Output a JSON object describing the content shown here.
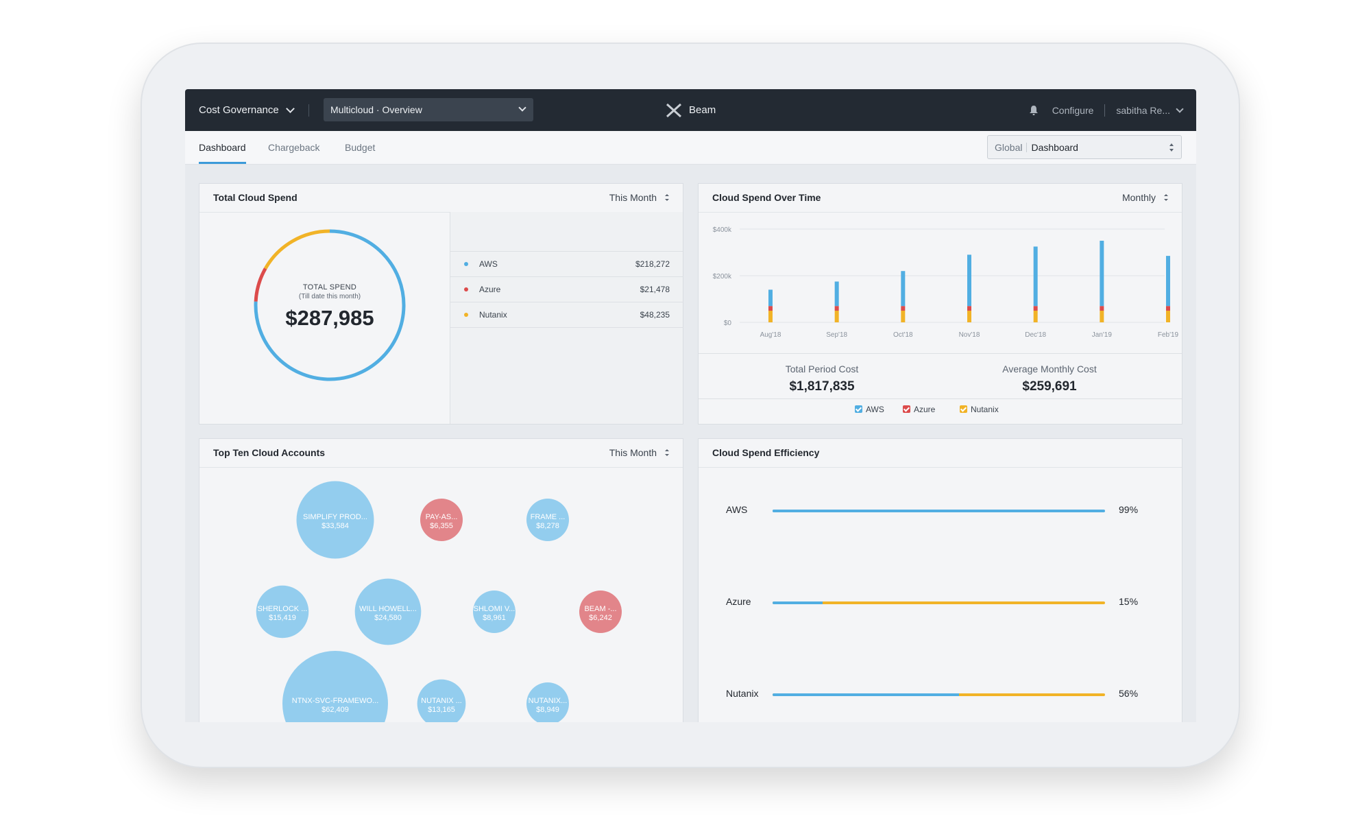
{
  "topbar": {
    "app_name": "Cost Governance",
    "view_select": "Multicloud  ·  Overview",
    "brand": "Beam",
    "configure": "Configure",
    "user": "sabitha Re..."
  },
  "tabs": [
    "Dashboard",
    "Chargeback",
    "Budget"
  ],
  "context_select": {
    "scope": "Global",
    "value": "Dashboard"
  },
  "colors": {
    "aws": "#51aee2",
    "azure": "#dc4b4b",
    "nutanix": "#f1b327"
  },
  "total_spend": {
    "title": "Total Cloud Spend",
    "filter": "This Month",
    "center_label": "TOTAL SPEND",
    "center_sub": "(Till date this month)",
    "total": "$287,985",
    "legend": [
      {
        "name": "AWS",
        "value": "$218,272"
      },
      {
        "name": "Azure",
        "value": "$21,478"
      },
      {
        "name": "Nutanix",
        "value": "$48,235"
      }
    ]
  },
  "spend_over_time": {
    "title": "Cloud Spend Over Time",
    "filter": "Monthly",
    "total_label": "Total Period Cost",
    "total_value": "$1,817,835",
    "avg_label": "Average Monthly Cost",
    "avg_value": "$259,691",
    "legend": [
      "AWS",
      "Azure",
      "Nutanix"
    ]
  },
  "chart_data": {
    "type": "bar",
    "stacked": true,
    "categories": [
      "Aug'18",
      "Sep'18",
      "Oct'18",
      "Nov'18",
      "Dec'18",
      "Jan'19",
      "Feb'19"
    ],
    "series": [
      {
        "name": "Nutanix",
        "values": [
          50000,
          50000,
          50000,
          50000,
          50000,
          50000,
          50000
        ]
      },
      {
        "name": "Azure",
        "values": [
          20000,
          20000,
          20000,
          20000,
          20000,
          20000,
          20000
        ]
      },
      {
        "name": "AWS",
        "values": [
          70000,
          105000,
          150000,
          220000,
          255000,
          280000,
          215000
        ]
      }
    ],
    "yticks": [
      "$0",
      "$200k",
      "$400k"
    ],
    "ylim": [
      0,
      400000
    ],
    "grid": true
  },
  "accounts": {
    "title": "Top Ten Cloud Accounts",
    "filter": "This Month",
    "bubbles": [
      {
        "name": "SIMPLIFY PROD...",
        "value": "$33,584",
        "cloud": "aws"
      },
      {
        "name": "PAY-AS...",
        "value": "$6,355",
        "cloud": "azure"
      },
      {
        "name": "FRAME ...",
        "value": "$8,278",
        "cloud": "aws"
      },
      {
        "name": "SHERLOCK ...",
        "value": "$15,419",
        "cloud": "aws"
      },
      {
        "name": "WILL HOWELL...",
        "value": "$24,580",
        "cloud": "aws"
      },
      {
        "name": "SHLOMI V...",
        "value": "$8,961",
        "cloud": "aws"
      },
      {
        "name": "BEAM -...",
        "value": "$6,242",
        "cloud": "azure"
      },
      {
        "name": "NTNX-SVC-FRAMEWO...",
        "value": "$62,409",
        "cloud": "aws"
      },
      {
        "name": "NUTANIX ...",
        "value": "$13,165",
        "cloud": "aws"
      },
      {
        "name": "NUTANIX...",
        "value": "$8,949",
        "cloud": "aws"
      }
    ]
  },
  "efficiency": {
    "title": "Cloud Spend Efficiency",
    "rows": [
      {
        "name": "AWS",
        "pct": "99%",
        "fraction": 0.99
      },
      {
        "name": "Azure",
        "pct": "15%",
        "fraction": 0.15
      },
      {
        "name": "Nutanix",
        "pct": "56%",
        "fraction": 0.56
      }
    ]
  }
}
